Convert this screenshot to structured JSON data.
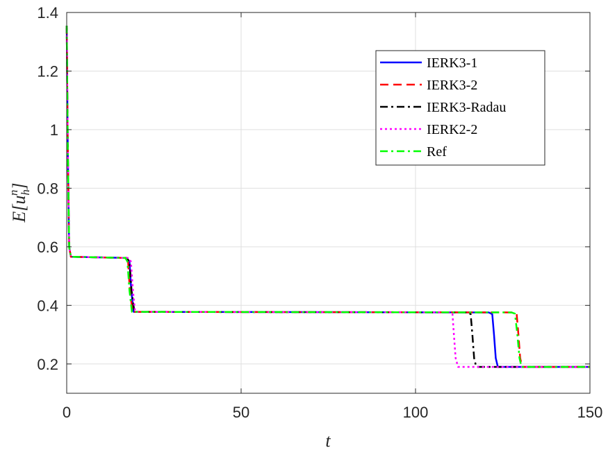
{
  "chart_data": {
    "type": "line",
    "xlabel": "t",
    "ylabel": "E[u_h^n]",
    "ylabel_parts": {
      "base": "E[u",
      "sub": "h",
      "sup": "n",
      "close": "]"
    },
    "xlim": [
      0,
      150
    ],
    "ylim": [
      0.1,
      1.4
    ],
    "xticks": [
      0,
      50,
      100,
      150
    ],
    "yticks": [
      0.2,
      0.4,
      0.6,
      0.8,
      1,
      1.2,
      1.4
    ],
    "xtick_labels": [
      "0",
      "50",
      "100",
      "150"
    ],
    "ytick_labels": [
      "0.2",
      "0.4",
      "0.6",
      "0.8",
      "1",
      "1.2",
      "1.4"
    ],
    "grid": true,
    "legend_position": "top-right",
    "series": [
      {
        "name": "IERK3-1",
        "color": "#0000ff",
        "dash": "solid",
        "x": [
          0,
          0.3,
          0.7,
          1.2,
          17,
          18,
          18.5,
          19.2,
          121,
          122,
          122.5,
          123,
          123.6,
          150
        ],
        "y": [
          1.355,
          0.95,
          0.6,
          0.566,
          0.562,
          0.55,
          0.45,
          0.378,
          0.376,
          0.37,
          0.3,
          0.22,
          0.19,
          0.19
        ]
      },
      {
        "name": "IERK3-2",
        "color": "#ff0000",
        "dash": "dashed",
        "x": [
          0,
          0.3,
          0.7,
          1.2,
          17,
          17.6,
          18.1,
          18.9,
          128,
          129,
          129.5,
          130,
          130.6,
          150
        ],
        "y": [
          1.355,
          0.95,
          0.6,
          0.566,
          0.562,
          0.55,
          0.45,
          0.378,
          0.376,
          0.37,
          0.3,
          0.22,
          0.19,
          0.19
        ]
      },
      {
        "name": "IERK3-Radau",
        "color": "#000000",
        "dash": "dashdot",
        "x": [
          0,
          0.3,
          0.7,
          1.2,
          17.2,
          18,
          18.6,
          19.4,
          115,
          115.8,
          116.3,
          116.8,
          117.4,
          150
        ],
        "y": [
          1.355,
          0.95,
          0.6,
          0.566,
          0.562,
          0.55,
          0.45,
          0.378,
          0.376,
          0.37,
          0.3,
          0.22,
          0.19,
          0.19
        ]
      },
      {
        "name": "IERK2-2",
        "color": "#ff00ff",
        "dash": "dotted",
        "x": [
          0,
          0.3,
          0.7,
          1.2,
          17.6,
          18.4,
          19,
          19.6,
          110,
          110.6,
          111,
          111.5,
          112.2,
          150
        ],
        "y": [
          1.355,
          0.95,
          0.6,
          0.566,
          0.562,
          0.55,
          0.45,
          0.378,
          0.376,
          0.37,
          0.3,
          0.22,
          0.19,
          0.19
        ]
      },
      {
        "name": "Ref",
        "color": "#00ff00",
        "dash": "dashdot",
        "x": [
          0,
          0.3,
          0.7,
          1.2,
          16.8,
          17.4,
          18,
          18.7,
          127.5,
          128.5,
          129.2,
          129.8,
          130.4,
          150
        ],
        "y": [
          1.355,
          0.95,
          0.6,
          0.566,
          0.562,
          0.55,
          0.45,
          0.378,
          0.376,
          0.372,
          0.3,
          0.22,
          0.19,
          0.19
        ]
      }
    ]
  }
}
